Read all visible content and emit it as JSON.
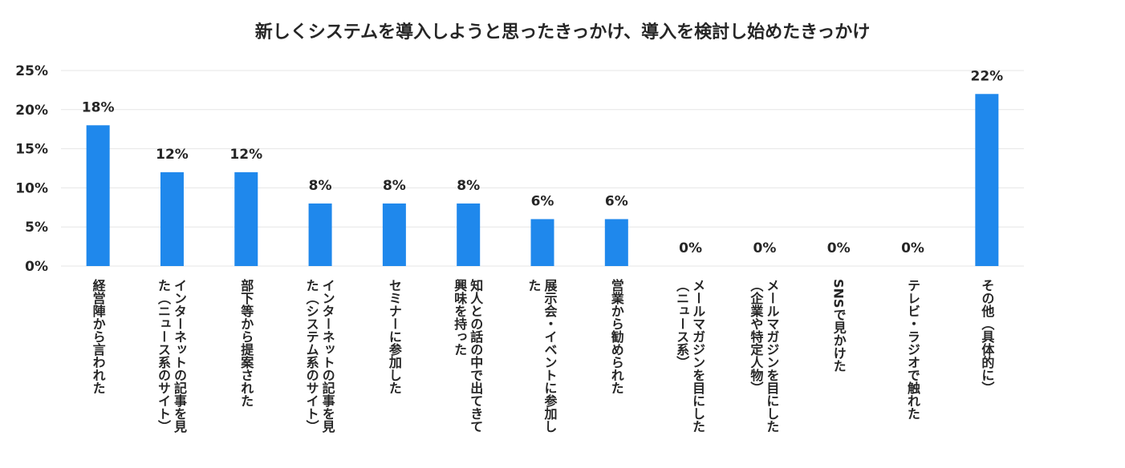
{
  "chart_data": {
    "type": "bar",
    "title": "新しくシステムを導入しようと思ったきっかけ、導入を検討し始めたきっかけ",
    "categories": [
      [
        "経営陣から言われた"
      ],
      [
        "インターネットの記事を見",
        "た（ニュース系のサイト）"
      ],
      [
        "部下等から提案された"
      ],
      [
        "インターネットの記事を見",
        "た（システム系のサイト）"
      ],
      [
        "セミナーに参加した"
      ],
      [
        "知人との話の中で出てきて",
        "興味を持った"
      ],
      [
        "展示会・イベントに参加し",
        "た"
      ],
      [
        "営業から勧められた"
      ],
      [
        "メールマガジンを目にした",
        "（ニュース系）"
      ],
      [
        "メールマガジンを目にした",
        "（企業や特定人物）"
      ],
      [
        "SNSで見かけた"
      ],
      [
        "テレビ・ラジオで触れた"
      ],
      [
        "その他（具体的に）"
      ]
    ],
    "values": [
      18,
      12,
      12,
      8,
      8,
      8,
      6,
      6,
      0,
      0,
      0,
      0,
      22
    ],
    "value_labels": [
      "18%",
      "12%",
      "12%",
      "8%",
      "8%",
      "8%",
      "6%",
      "6%",
      "0%",
      "0%",
      "0%",
      "0%",
      "22%"
    ],
    "yticks": [
      "0%",
      "5%",
      "10%",
      "15%",
      "20%",
      "25%"
    ],
    "ylim": [
      0,
      25
    ],
    "grid": true,
    "bar_color": "#1f88ec",
    "gridline_color": "#e6e6e6"
  }
}
